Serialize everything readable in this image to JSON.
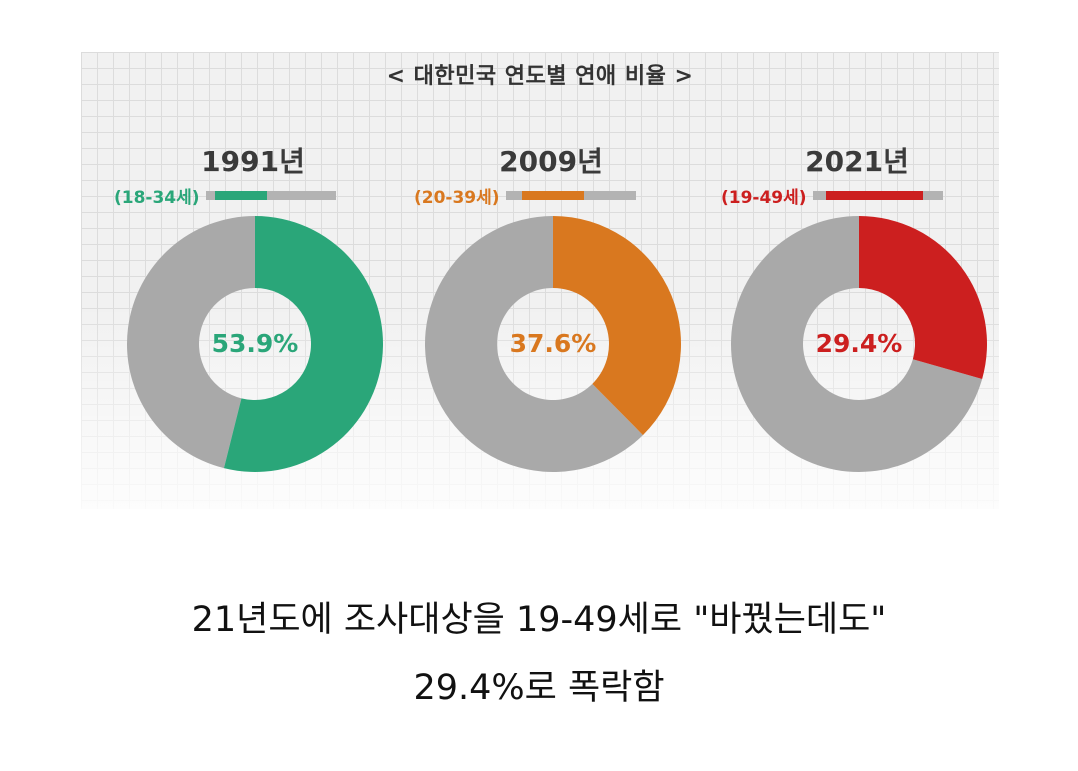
{
  "chart_data": {
    "type": "pie",
    "title": "< 대한민국 연도별 연애 비율 >",
    "subplots": [
      {
        "year": "1991년",
        "age_range": "(18-34세)",
        "value": 53.9,
        "label": "53.9%",
        "color": "#2aa679"
      },
      {
        "year": "2009년",
        "age_range": "(20-39세)",
        "value": 37.6,
        "label": "37.6%",
        "color": "#d9781f"
      },
      {
        "year": "2021년",
        "age_range": "(19-49세)",
        "value": 29.4,
        "label": "29.4%",
        "color": "#cc1f1f"
      }
    ],
    "range_bar": {
      "axis_min": 15,
      "axis_max": 55
    },
    "remainder_color": "#a9a9a9"
  },
  "caption": {
    "line1": "21년도에 조사대상을 19-49세로 \"바꿨는데도\"",
    "line2": "29.4%로 폭락함"
  }
}
